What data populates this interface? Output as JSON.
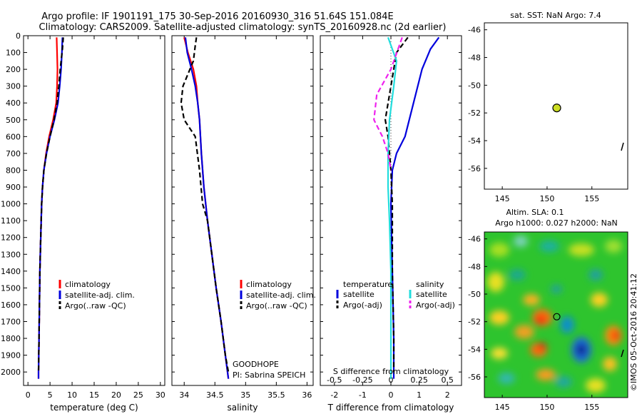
{
  "header": {
    "line1": "Argo profile: IF 1901191_175 30-Sep-2016 20160930_316 51.64S 151.084E",
    "line2": "Climatology: CARS2009. Satellite-adjusted climatology: synTS_20160928.nc (2d earlier)"
  },
  "colors": {
    "climatology": "#ff0000",
    "satellite": "#0000dd",
    "argo": "#000000",
    "salinity_satellite": "#22dddd",
    "salinity_argo": "#ee22ee",
    "float_marker": "#ccdd22"
  },
  "chart_data": [
    {
      "type": "line",
      "xlabel": "temperature (deg C)",
      "ylabel": "",
      "xlim": [
        -1,
        31
      ],
      "ylim": [
        2080,
        0
      ],
      "xticks": [
        0,
        5,
        10,
        15,
        20,
        25,
        30
      ],
      "yticks": [
        0,
        100,
        200,
        300,
        400,
        500,
        600,
        700,
        800,
        900,
        1000,
        1100,
        1200,
        1300,
        1400,
        1500,
        1600,
        1700,
        1800,
        1900,
        2000
      ],
      "legend": [
        "climatology",
        "satellite-adj. clim.",
        "Argo(..raw -QC)"
      ],
      "legend_position": "lower-center",
      "series": [
        {
          "name": "climatology",
          "color": "#ff0000",
          "dash": false,
          "points": [
            [
              6.5,
              10
            ],
            [
              6.6,
              100
            ],
            [
              6.7,
              200
            ],
            [
              6.6,
              300
            ],
            [
              6.4,
              400
            ],
            [
              5.7,
              500
            ],
            [
              4.8,
              600
            ],
            [
              4.1,
              700
            ],
            [
              3.6,
              800
            ],
            [
              3.3,
              900
            ],
            [
              3.1,
              1000
            ],
            [
              2.9,
              1200
            ],
            [
              2.7,
              1400
            ],
            [
              2.6,
              1600
            ],
            [
              2.5,
              1800
            ],
            [
              2.4,
              2000
            ],
            [
              2.4,
              2040
            ]
          ]
        },
        {
          "name": "satellite-adj. clim.",
          "color": "#0000dd",
          "dash": false,
          "points": [
            [
              7.8,
              10
            ],
            [
              7.7,
              100
            ],
            [
              7.5,
              200
            ],
            [
              7.2,
              300
            ],
            [
              6.8,
              400
            ],
            [
              6.0,
              500
            ],
            [
              5.0,
              600
            ],
            [
              4.2,
              700
            ],
            [
              3.6,
              800
            ],
            [
              3.3,
              900
            ],
            [
              3.1,
              1000
            ],
            [
              2.9,
              1200
            ],
            [
              2.7,
              1400
            ],
            [
              2.6,
              1600
            ],
            [
              2.5,
              1800
            ],
            [
              2.4,
              2000
            ],
            [
              2.4,
              2040
            ]
          ]
        },
        {
          "name": "Argo(..raw -QC)",
          "color": "#000000",
          "dash": true,
          "points": [
            [
              8.0,
              10
            ],
            [
              7.8,
              80
            ],
            [
              7.3,
              200
            ],
            [
              7.0,
              300
            ],
            [
              6.6,
              400
            ],
            [
              5.9,
              500
            ],
            [
              5.0,
              600
            ],
            [
              4.2,
              700
            ],
            [
              3.6,
              800
            ],
            [
              3.3,
              900
            ],
            [
              3.1,
              1000
            ],
            [
              2.9,
              1200
            ],
            [
              2.7,
              1400
            ],
            [
              2.6,
              1600
            ],
            [
              2.5,
              1800
            ],
            [
              2.4,
              2000
            ]
          ]
        }
      ]
    },
    {
      "type": "line",
      "xlabel": "salinity",
      "xlim": [
        33.8,
        36.1
      ],
      "ylim": [
        2080,
        0
      ],
      "xticks": [
        34,
        34.5,
        35,
        35.5,
        36
      ],
      "legend": [
        "climatology",
        "satellite-adj. clim.",
        "Argo(..raw -QC)"
      ],
      "legend_position": "lower-center",
      "annotations": [
        "GOODHOPE",
        "PI: Sabrina SPEICH"
      ],
      "series": [
        {
          "name": "climatology",
          "color": "#ff0000",
          "dash": false,
          "points": [
            [
              34.0,
              10
            ],
            [
              34.06,
              100
            ],
            [
              34.15,
              200
            ],
            [
              34.2,
              300
            ],
            [
              34.22,
              400
            ],
            [
              34.25,
              500
            ],
            [
              34.28,
              700
            ],
            [
              34.32,
              900
            ],
            [
              34.38,
              1100
            ],
            [
              34.45,
              1300
            ],
            [
              34.52,
              1500
            ],
            [
              34.6,
              1700
            ],
            [
              34.67,
              1900
            ],
            [
              34.72,
              2040
            ]
          ]
        },
        {
          "name": "satellite-adj. clim.",
          "color": "#0000dd",
          "dash": false,
          "points": [
            [
              34.02,
              10
            ],
            [
              34.05,
              100
            ],
            [
              34.12,
              200
            ],
            [
              34.18,
              300
            ],
            [
              34.22,
              400
            ],
            [
              34.25,
              500
            ],
            [
              34.28,
              700
            ],
            [
              34.32,
              900
            ],
            [
              34.38,
              1100
            ],
            [
              34.45,
              1300
            ],
            [
              34.52,
              1500
            ],
            [
              34.6,
              1700
            ],
            [
              34.67,
              1900
            ],
            [
              34.72,
              2040
            ]
          ]
        },
        {
          "name": "Argo(..raw -QC)",
          "color": "#000000",
          "dash": true,
          "points": [
            [
              34.2,
              10
            ],
            [
              34.18,
              60
            ],
            [
              34.15,
              150
            ],
            [
              33.98,
              300
            ],
            [
              33.95,
              400
            ],
            [
              34.0,
              500
            ],
            [
              34.18,
              600
            ],
            [
              34.25,
              800
            ],
            [
              34.3,
              1000
            ],
            [
              34.38,
              1100
            ],
            [
              34.45,
              1300
            ],
            [
              34.52,
              1500
            ],
            [
              34.6,
              1700
            ],
            [
              34.67,
              1900
            ],
            [
              34.72,
              2000
            ]
          ]
        }
      ]
    },
    {
      "type": "line",
      "xlabel": "T difference from climatology",
      "xlabel_top": "S difference from climatology",
      "xlim": [
        -2.5,
        2.5
      ],
      "ylim": [
        2080,
        0
      ],
      "xticks": [
        -2,
        -1,
        0,
        1,
        2
      ],
      "xticks_top": [
        "-0.5",
        "-0.25",
        "0",
        "0.25",
        "0.5"
      ],
      "legend_temperature": [
        "temperature",
        "satellite",
        "Argo(-adj)"
      ],
      "legend_salinity": [
        "salinity",
        "satellite",
        "Argo(-adj)"
      ],
      "series": [
        {
          "name": "T satellite",
          "color": "#0000dd",
          "dash": false,
          "points": [
            [
              1.7,
              10
            ],
            [
              1.4,
              80
            ],
            [
              1.1,
              200
            ],
            [
              0.8,
              400
            ],
            [
              0.5,
              600
            ],
            [
              0.2,
              700
            ],
            [
              0.05,
              800
            ],
            [
              0.0,
              1000
            ],
            [
              0.05,
              1400
            ],
            [
              0.1,
              1800
            ],
            [
              0.1,
              2040
            ]
          ]
        },
        {
          "name": "T Argo(-adj)",
          "color": "#000000",
          "dash": true,
          "points": [
            [
              0.6,
              10
            ],
            [
              0.2,
              100
            ],
            [
              0.0,
              300
            ],
            [
              -0.2,
              500
            ],
            [
              -0.1,
              600
            ],
            [
              0.0,
              800
            ],
            [
              0.05,
              1000
            ],
            [
              0.05,
              1400
            ],
            [
              0.1,
              1800
            ],
            [
              0.1,
              2000
            ]
          ]
        },
        {
          "name": "S satellite",
          "color": "#22dddd",
          "dash": false,
          "points": [
            [
              -0.1,
              10
            ],
            [
              0.2,
              150
            ],
            [
              0.1,
              300
            ],
            [
              -0.05,
              500
            ],
            [
              -0.1,
              700
            ],
            [
              -0.1,
              900
            ],
            [
              -0.05,
              1100
            ],
            [
              0.0,
              1400
            ],
            [
              0.0,
              1800
            ],
            [
              0.0,
              2040
            ]
          ]
        },
        {
          "name": "S Argo(-adj)",
          "color": "#ee22ee",
          "dash": true,
          "points": [
            [
              0.4,
              10
            ],
            [
              0.0,
              200
            ],
            [
              -0.5,
              350
            ],
            [
              -0.6,
              500
            ],
            [
              -0.3,
              600
            ],
            [
              -0.1,
              700
            ],
            [
              0.0,
              800
            ]
          ]
        }
      ]
    },
    {
      "type": "scatter",
      "title": "sat. SST: NaN Argo: 7.4",
      "xlim": [
        143,
        159
      ],
      "ylim": [
        -57.5,
        -45.5
      ],
      "xticks": [
        145,
        150,
        155
      ],
      "yticks": [
        -46,
        -48,
        -50,
        -52,
        -54,
        -56
      ],
      "points": [
        {
          "x": 151.08,
          "y": -51.64
        }
      ]
    },
    {
      "type": "heatmap",
      "title_line1": "Altim. SLA: 0.1",
      "title_line2": "Argo h1000: 0.027 h2000: NaN",
      "xlim": [
        143,
        159
      ],
      "ylim": [
        -57.5,
        -45.5
      ],
      "xticks": [
        145,
        150,
        155
      ],
      "yticks": [
        -46,
        -48,
        -50,
        -52,
        -54,
        -56
      ],
      "points": [
        {
          "x": 151.08,
          "y": -51.64
        }
      ]
    }
  ],
  "footer": {
    "watermark": "©IMOS 05-Oct-2016 20:41:12"
  }
}
